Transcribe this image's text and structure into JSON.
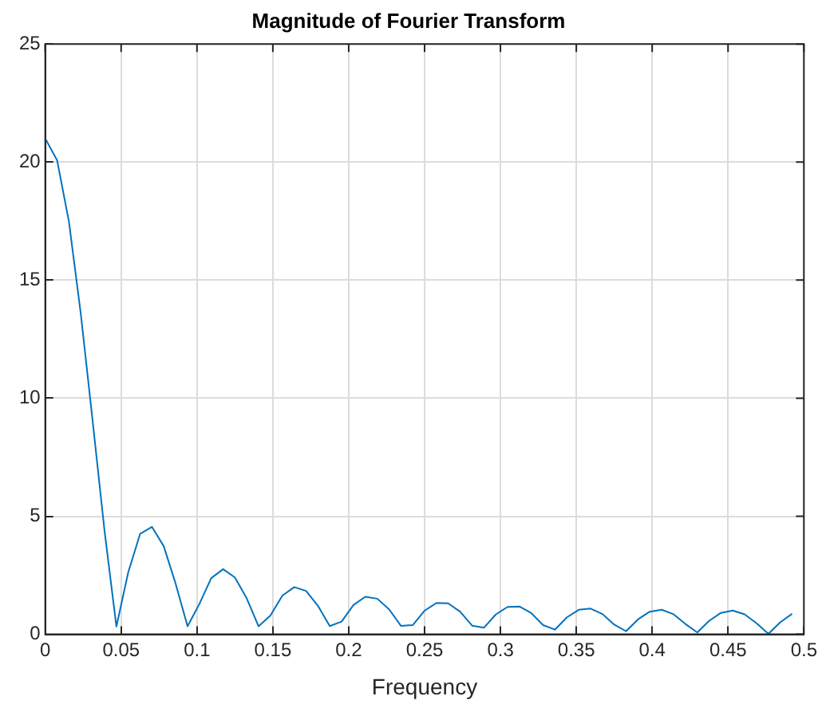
{
  "chart_data": {
    "type": "line",
    "title": "Magnitude of Fourier Transform",
    "xlabel": "Frequency",
    "x": [
      0,
      0.0078,
      0.0156,
      0.0234,
      0.0313,
      0.0391,
      0.0469,
      0.0547,
      0.0625,
      0.0703,
      0.0781,
      0.0859,
      0.0938,
      0.1016,
      0.1094,
      0.1172,
      0.125,
      0.1328,
      0.1406,
      0.1484,
      0.1563,
      0.1641,
      0.1719,
      0.1797,
      0.1875,
      0.1953,
      0.2031,
      0.2109,
      0.2188,
      0.2266,
      0.2344,
      0.2422,
      0.25,
      0.2578,
      0.2656,
      0.2734,
      0.2813,
      0.2891,
      0.2969,
      0.3047,
      0.3125,
      0.3203,
      0.3281,
      0.3359,
      0.3438,
      0.3516,
      0.3594,
      0.3672,
      0.375,
      0.3828,
      0.3906,
      0.3984,
      0.4063,
      0.4141,
      0.4219,
      0.4297,
      0.4375,
      0.4453,
      0.4531,
      0.4609,
      0.4688,
      0.4766,
      0.4844,
      0.4922
    ],
    "series": [
      {
        "color": "#0072bd",
        "values": [
          21,
          20.08,
          17.48,
          13.59,
          9.0,
          4.36,
          0.33,
          2.63,
          4.25,
          4.55,
          3.73,
          2.15,
          0.34,
          1.29,
          2.38,
          2.76,
          2.41,
          1.52,
          0.34,
          0.8,
          1.64,
          2.0,
          1.84,
          1.21,
          0.35,
          0.54,
          1.24,
          1.59,
          1.51,
          1.06,
          0.36,
          0.39,
          1.0,
          1.33,
          1.31,
          0.96,
          0.37,
          0.28,
          0.84,
          1.16,
          1.18,
          0.9,
          0.39,
          0.2,
          0.72,
          1.04,
          1.09,
          0.86,
          0.41,
          0.13,
          0.63,
          0.96,
          1.04,
          0.85,
          0.44,
          0.08,
          0.57,
          0.91,
          1.01,
          0.85,
          0.47,
          0.02,
          0.51,
          0.87
        ]
      }
    ],
    "xlim": [
      0,
      0.5
    ],
    "xticks": [
      0,
      0.05,
      0.1,
      0.15,
      0.2,
      0.25,
      0.3,
      0.35,
      0.4,
      0.45,
      0.5
    ],
    "ylim": [
      0,
      25
    ],
    "yticks": [
      0,
      5,
      10,
      15,
      20,
      25
    ],
    "grid": true,
    "legend": false,
    "marker": "none",
    "line_style": "solid"
  }
}
